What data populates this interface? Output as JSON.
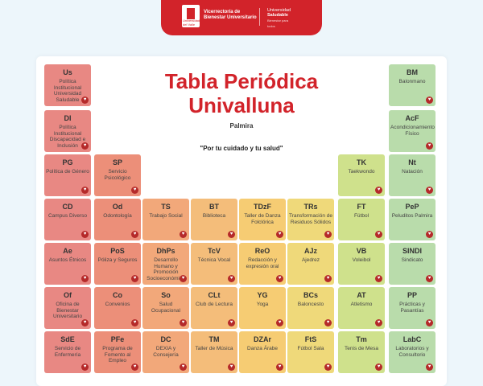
{
  "header": {
    "logo_text": "Universidad del Valle",
    "vicerrectoria_line1": "Vicerrectoría de",
    "vicerrectoria_line2": "Bienestar Universitario",
    "saludable_line1": "Universidad",
    "saludable_line2": "Saludable",
    "saludable_line3": "Bienestar",
    "saludable_line4": "para todos"
  },
  "title_line1": "Tabla Periódica",
  "title_line2": "Univalluna",
  "campus": "Palmira",
  "slogan": "\"Por tu cuidado y tu salud\"",
  "heart_icon": "heart-icon",
  "elements": [
    {
      "sym": "Us",
      "name": "Política Institucional Universidad Saludable",
      "color": "#e88883"
    },
    {
      "sym": "DI",
      "name": "Política Institucional Discapacidad e Inclusión",
      "color": "#e88883"
    },
    {
      "sym": "PG",
      "name": "Política de Género",
      "color": "#e88883"
    },
    {
      "sym": "CD",
      "name": "Campus Diverso",
      "color": "#e88883"
    },
    {
      "sym": "Ae",
      "name": "Asuntos Étnicos",
      "color": "#e88883"
    },
    {
      "sym": "Of",
      "name": "Oficina de Bienestar Universitario",
      "color": "#e88883"
    },
    {
      "sym": "SdE",
      "name": "Servicio de Enfermería",
      "color": "#e88883"
    },
    {
      "sym": "SP",
      "name": "Servicio Psicológico",
      "color": "#ec8f79"
    },
    {
      "sym": "Od",
      "name": "Odontología",
      "color": "#ec8f79"
    },
    {
      "sym": "PoS",
      "name": "Póliza y Seguros",
      "color": "#ec8f79"
    },
    {
      "sym": "Co",
      "name": "Convenios",
      "color": "#ec8f79"
    },
    {
      "sym": "PFe",
      "name": "Programa de Fomento al Empleo",
      "color": "#ec8f79"
    },
    {
      "sym": "TS",
      "name": "Trabajo Social",
      "color": "#f2a87a"
    },
    {
      "sym": "DhPs",
      "name": "Desarrollo Humano y Promoción Socioeconómica",
      "color": "#f2a87a"
    },
    {
      "sym": "So",
      "name": "Salud Ocupacional",
      "color": "#f2a87a"
    },
    {
      "sym": "DC",
      "name": "DEXIA y Consejería",
      "color": "#f2a87a"
    },
    {
      "sym": "BT",
      "name": "Biblioteca",
      "color": "#f4bd7a"
    },
    {
      "sym": "TcV",
      "name": "Técnica Vocal",
      "color": "#f4bd7a"
    },
    {
      "sym": "CLt",
      "name": "Club de Lectura",
      "color": "#f4bd7a"
    },
    {
      "sym": "TM",
      "name": "Taller de Música",
      "color": "#f4bd7a"
    },
    {
      "sym": "TDzF",
      "name": "Taller de Danza Folclórica",
      "color": "#f6cc73"
    },
    {
      "sym": "ReO",
      "name": "Redacción y expresión oral",
      "color": "#f6cc73"
    },
    {
      "sym": "YG",
      "name": "Yoga",
      "color": "#f6cc73"
    },
    {
      "sym": "DZAr",
      "name": "Danza Árabe",
      "color": "#f6cc73"
    },
    {
      "sym": "TRs",
      "name": "Transformación de Residuos Sólidos",
      "color": "#efd97a"
    },
    {
      "sym": "AJz",
      "name": "Ajedrez",
      "color": "#efd97a"
    },
    {
      "sym": "BCs",
      "name": "Baloncesto",
      "color": "#efd97a"
    },
    {
      "sym": "FtS",
      "name": "Fútbol Sala",
      "color": "#efd97a"
    },
    {
      "sym": "TK",
      "name": "Taekwondo",
      "color": "#cfe18c"
    },
    {
      "sym": "FT",
      "name": "Fútbol",
      "color": "#cfe18c"
    },
    {
      "sym": "VB",
      "name": "Voleibol",
      "color": "#cfe18c"
    },
    {
      "sym": "AT",
      "name": "Atletismo",
      "color": "#cfe18c"
    },
    {
      "sym": "Tm",
      "name": "Tenis de Mesa",
      "color": "#cfe18c"
    },
    {
      "sym": "BM",
      "name": "Balonmano",
      "color": "#b9dcab"
    },
    {
      "sym": "AcF",
      "name": "Acondicionamiento Físico",
      "color": "#b9dcab"
    },
    {
      "sym": "Nt",
      "name": "Natación",
      "color": "#b9dcab"
    },
    {
      "sym": "PeP",
      "name": "Peluditos Palmira",
      "color": "#b9dcab"
    },
    {
      "sym": "SINDI",
      "name": "Sindicato",
      "color": "#b9dcab"
    },
    {
      "sym": "PP",
      "name": "Prácticas y Pasantías",
      "color": "#b9dcab"
    },
    {
      "sym": "LabC",
      "name": "Laboratorios y Consultorio",
      "color": "#b9dcab"
    }
  ]
}
